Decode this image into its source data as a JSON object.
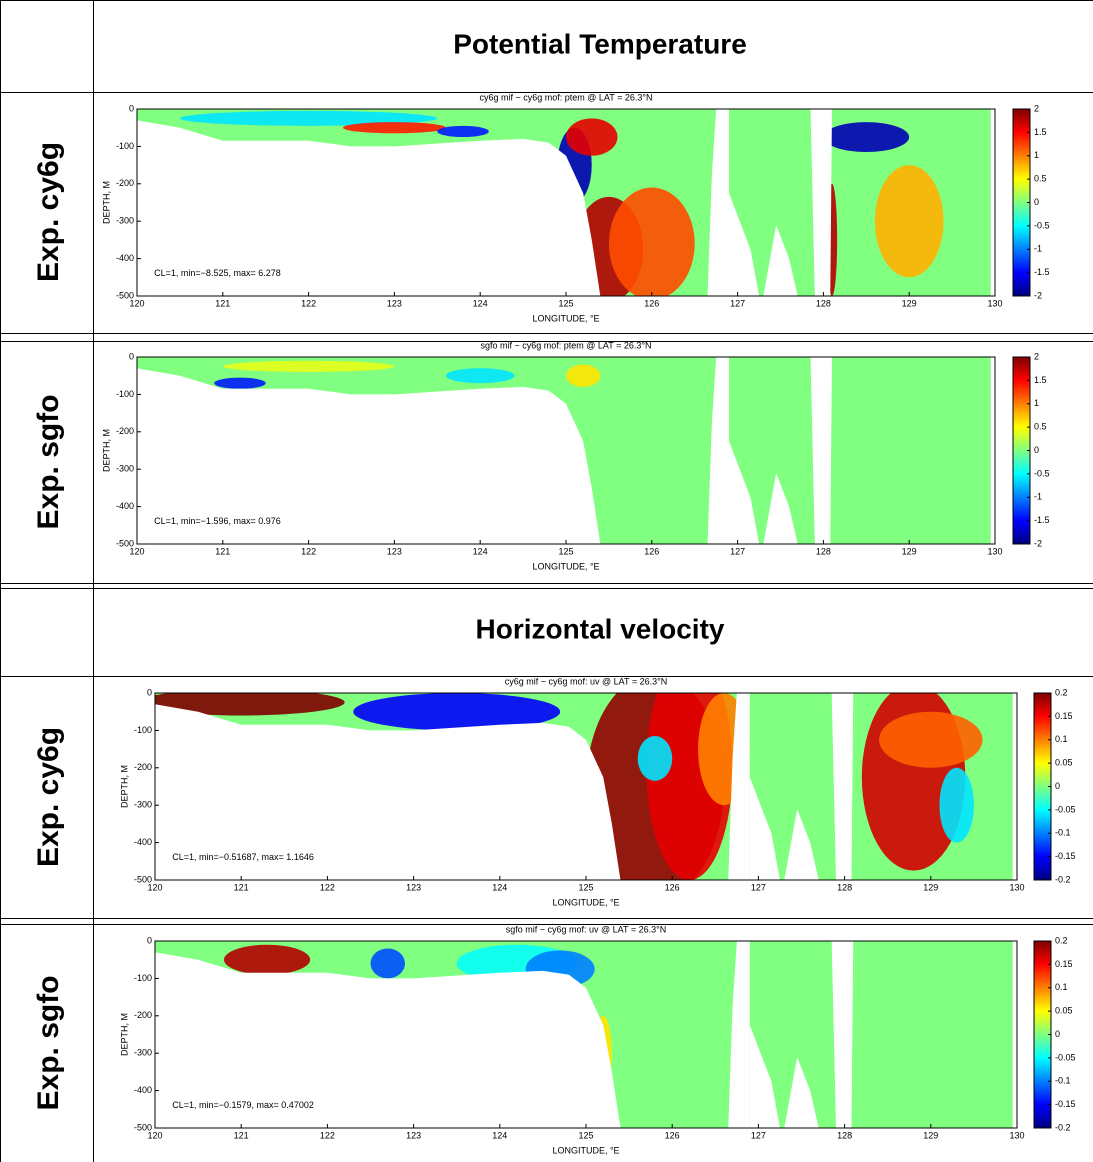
{
  "sections": [
    {
      "title": "Potential Temperature"
    },
    {
      "title": "Horizontal velocity"
    }
  ],
  "row_labels": [
    "Exp. cy6g",
    "Exp. sgfo",
    "Exp. cy6g",
    "Exp. sgfo"
  ],
  "chart_data": [
    {
      "type": "heatmap",
      "title": "cy6g mif − cy6g mof: ptem @ LAT = 26.3°N",
      "x_label": "LONGITUDE, °E",
      "y_label": "DEPTH, M",
      "xlim": [
        120,
        130
      ],
      "xticks": [
        120,
        121,
        122,
        123,
        124,
        125,
        126,
        127,
        128,
        129,
        130
      ],
      "ylim": [
        -500,
        0
      ],
      "yticks": [
        -500,
        -400,
        -300,
        -200,
        -100,
        0
      ],
      "clim": [
        -2,
        2
      ],
      "cticks": [
        -2,
        -1.5,
        -1,
        -0.5,
        0,
        0.5,
        1,
        1.5,
        2
      ],
      "colormap": "jet",
      "annotation": "CL=1, min=−8.525, max= 6.278"
    },
    {
      "type": "heatmap",
      "title": "sgfo mif − cy6g mof: ptem @ LAT = 26.3°N",
      "x_label": "LONGITUDE, °E",
      "y_label": "DEPTH, M",
      "xlim": [
        120,
        130
      ],
      "xticks": [
        120,
        121,
        122,
        123,
        124,
        125,
        126,
        127,
        128,
        129,
        130
      ],
      "ylim": [
        -500,
        0
      ],
      "yticks": [
        -500,
        -400,
        -300,
        -200,
        -100,
        0
      ],
      "clim": [
        -2,
        2
      ],
      "cticks": [
        -2,
        -1.5,
        -1,
        -0.5,
        0,
        0.5,
        1,
        1.5,
        2
      ],
      "colormap": "jet",
      "annotation": "CL=1, min=−1.596, max= 0.976"
    },
    {
      "type": "heatmap",
      "title": "cy6g mif − cy6g mof: uv @ LAT = 26.3°N",
      "x_label": "LONGITUDE, °E",
      "y_label": "DEPTH, M",
      "xlim": [
        120,
        130
      ],
      "xticks": [
        120,
        121,
        122,
        123,
        124,
        125,
        126,
        127,
        128,
        129,
        130
      ],
      "ylim": [
        -500,
        0
      ],
      "yticks": [
        -500,
        -400,
        -300,
        -200,
        -100,
        0
      ],
      "clim": [
        -0.2,
        0.2
      ],
      "cticks": [
        -0.2,
        -0.15,
        -0.1,
        -0.05,
        0,
        0.05,
        0.1,
        0.15,
        0.2
      ],
      "colormap": "jet",
      "annotation": "CL=1, min=−0.51687, max= 1.1646"
    },
    {
      "type": "heatmap",
      "title": "sgfo mif − cy6g mof: uv @ LAT = 26.3°N",
      "x_label": "LONGITUDE, °E",
      "y_label": "DEPTH, M",
      "xlim": [
        120,
        130
      ],
      "xticks": [
        120,
        121,
        122,
        123,
        124,
        125,
        126,
        127,
        128,
        129,
        130
      ],
      "ylim": [
        -500,
        0
      ],
      "yticks": [
        -500,
        -400,
        -300,
        -200,
        -100,
        0
      ],
      "clim": [
        -0.2,
        0.2
      ],
      "cticks": [
        -0.2,
        -0.15,
        -0.1,
        -0.05,
        0,
        0.05,
        0.1,
        0.15,
        0.2
      ],
      "colormap": "jet",
      "annotation": "CL=1, min=−0.1579, max= 0.47002"
    }
  ]
}
